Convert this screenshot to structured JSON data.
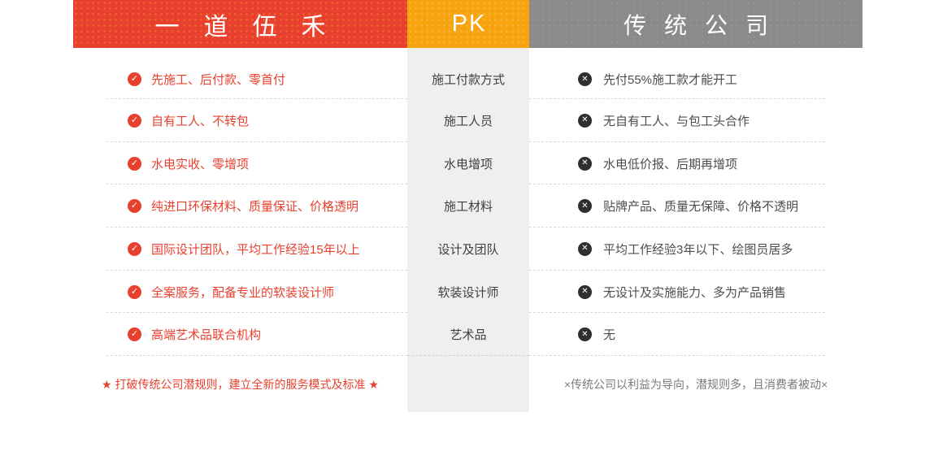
{
  "header": {
    "brand": "一道伍禾",
    "versus": "PK",
    "competitor": "传统公司"
  },
  "icons": {
    "check": "✓",
    "cross": "✕",
    "star": "★",
    "x_mark": "×"
  },
  "colors": {
    "brand_red": "#e8402f",
    "pk_orange": "#f7a410",
    "competitor_gray": "#8a8a8a",
    "category_column_bg": "#efefef",
    "competitor_text": "#4d4d4d",
    "cross_badge": "#2f2f2f",
    "footer_note_gray": "#7a7a7a"
  },
  "rows": [
    {
      "brand": "先施工、后付款、零首付",
      "category": "施工付款方式",
      "competitor": "先付55%施工款才能开工"
    },
    {
      "brand": "自有工人、不转包",
      "category": "施工人员",
      "competitor": "无自有工人、与包工头合作"
    },
    {
      "brand": "水电实收、零增项",
      "category": "水电增项",
      "competitor": "水电低价报、后期再增项"
    },
    {
      "brand": "纯进口环保材料、质量保证、价格透明",
      "category": "施工材料",
      "competitor": "贴牌产品、质量无保障、价格不透明"
    },
    {
      "brand": "国际设计团队，平均工作经验15年以上",
      "category": "设计及团队",
      "competitor": "平均工作经验3年以下、绘图员居多"
    },
    {
      "brand": "全案服务，配备专业的软装设计师",
      "category": "软装设计师",
      "competitor": "无设计及实施能力、多为产品销售"
    },
    {
      "brand": "高端艺术品联合机构",
      "category": "艺术品",
      "competitor": "无"
    }
  ],
  "footer": {
    "brand_slogan": "★ 打破传统公司潜规则，建立全新的服务模式及标准 ★",
    "competitor_note": "×传统公司以利益为导向，潜规则多，且消费者被动×"
  }
}
